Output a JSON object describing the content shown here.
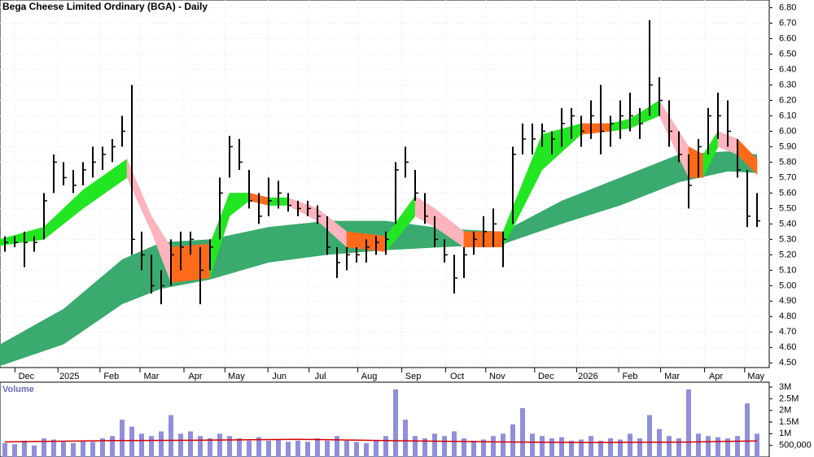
{
  "chart_data": [
    {
      "type": "candlestick",
      "title": "Bega Cheese Limited Ordinary (BGA) - Daily",
      "color": "#000000",
      "xlim": [
        -0.5,
        78.25
      ],
      "ylim": [
        4.47,
        6.85
      ],
      "grid": true,
      "xticks": [
        {
          "value": 2.2,
          "label": "Dec"
        },
        {
          "value": 6.6,
          "label": "2025"
        },
        {
          "value": 10.9,
          "label": "Feb"
        },
        {
          "value": 15,
          "label": "Mar"
        },
        {
          "value": 19.5,
          "label": "Apr"
        },
        {
          "value": 23.7,
          "label": "May"
        },
        {
          "value": 28.1,
          "label": "Jun"
        },
        {
          "value": 32.3,
          "label": "Jul"
        },
        {
          "value": 37.3,
          "label": "Aug"
        },
        {
          "value": 41.8,
          "label": "Sep"
        },
        {
          "value": 46.3,
          "label": "Oct"
        },
        {
          "value": 50.4,
          "label": "Nov"
        },
        {
          "value": 55.4,
          "label": "Dec"
        },
        {
          "value": 59.7,
          "label": "2026"
        },
        {
          "value": 64,
          "label": "Feb"
        },
        {
          "value": 68.3,
          "label": "Mar"
        },
        {
          "value": 72.8,
          "label": "Apr"
        },
        {
          "value": 76.9,
          "label": "May"
        }
      ],
      "yticks": [
        {
          "value": 4.5,
          "label": "4.50"
        },
        {
          "value": 4.6,
          "label": "4.60"
        },
        {
          "value": 4.7,
          "label": "4.70"
        },
        {
          "value": 4.8,
          "label": "4.80"
        },
        {
          "value": 4.9,
          "label": "4.90"
        },
        {
          "value": 5.0,
          "label": "5.00"
        },
        {
          "value": 5.1,
          "label": "5.10"
        },
        {
          "value": 5.2,
          "label": "5.20"
        },
        {
          "value": 5.3,
          "label": "5.30"
        },
        {
          "value": 5.4,
          "label": "5.40"
        },
        {
          "value": 5.5,
          "label": "5.50"
        },
        {
          "value": 5.6,
          "label": "5.60"
        },
        {
          "value": 5.7,
          "label": "5.70"
        },
        {
          "value": 5.8,
          "label": "5.80"
        },
        {
          "value": 5.9,
          "label": "5.90"
        },
        {
          "value": 6.0,
          "label": "6.00"
        },
        {
          "value": 6.1,
          "label": "6.10"
        },
        {
          "value": 6.2,
          "label": "6.20"
        },
        {
          "value": 6.3,
          "label": "6.30"
        },
        {
          "value": 6.4,
          "label": "6.40"
        },
        {
          "value": 6.5,
          "label": "6.50"
        },
        {
          "value": 6.6,
          "label": "6.60"
        },
        {
          "value": 6.7,
          "label": "6.70"
        },
        {
          "value": 6.8,
          "label": "6.80"
        }
      ],
      "x": [
        0,
        1,
        2,
        3,
        4,
        5,
        6,
        7,
        8,
        9,
        10,
        11,
        12,
        13,
        14,
        15,
        16,
        17,
        18,
        19,
        20,
        21,
        22,
        23,
        24,
        25,
        26,
        27,
        28,
        29,
        30,
        31,
        32,
        33,
        34,
        35,
        36,
        37,
        38,
        39,
        40,
        41,
        42,
        43,
        44,
        45,
        46,
        47,
        48,
        49,
        50,
        51,
        52,
        53,
        54,
        55,
        56,
        57,
        58,
        59,
        60,
        61,
        62,
        63,
        64,
        65,
        66,
        67,
        68,
        69,
        70,
        71,
        72,
        73,
        74,
        75,
        76,
        77
      ],
      "high": [
        5.32,
        5.32,
        5.35,
        5.32,
        5.6,
        5.85,
        5.8,
        5.75,
        5.8,
        5.9,
        5.9,
        5.95,
        6.1,
        6.3,
        5.35,
        5.2,
        5.1,
        5.3,
        5.35,
        5.35,
        5.25,
        5.3,
        5.7,
        5.97,
        5.95,
        5.75,
        5.6,
        5.7,
        5.68,
        5.6,
        5.55,
        5.55,
        5.52,
        5.45,
        5.25,
        5.25,
        5.25,
        5.3,
        5.32,
        5.35,
        5.8,
        5.9,
        5.75,
        5.6,
        5.45,
        5.3,
        5.2,
        5.25,
        5.35,
        5.45,
        5.5,
        5.35,
        5.9,
        6.05,
        6.05,
        6.05,
        6.0,
        6.15,
        6.15,
        6.1,
        6.2,
        6.3,
        6.1,
        6.2,
        6.25,
        6.15,
        6.72,
        6.35,
        6.2,
        6.0,
        5.85,
        5.95,
        6.15,
        6.25,
        6.2,
        5.95,
        5.75,
        5.6
      ],
      "low": [
        5.22,
        5.25,
        5.12,
        5.22,
        5.3,
        5.6,
        5.65,
        5.6,
        5.65,
        5.7,
        5.75,
        5.8,
        5.9,
        5.2,
        5.1,
        4.95,
        4.88,
        5.0,
        5.1,
        5.2,
        4.88,
        5.1,
        5.3,
        5.7,
        5.75,
        5.5,
        5.4,
        5.45,
        5.5,
        5.48,
        5.45,
        5.45,
        5.4,
        5.2,
        5.05,
        5.1,
        5.15,
        5.15,
        5.2,
        5.2,
        5.4,
        5.7,
        5.55,
        5.4,
        5.25,
        5.15,
        4.95,
        5.05,
        5.2,
        5.25,
        5.25,
        5.12,
        5.4,
        5.85,
        5.85,
        5.9,
        5.85,
        5.9,
        5.95,
        5.9,
        5.95,
        5.85,
        5.9,
        5.95,
        6.0,
        5.95,
        6.1,
        6.1,
        5.9,
        5.8,
        5.5,
        5.7,
        5.85,
        5.95,
        5.9,
        5.7,
        5.38,
        5.38
      ],
      "close": [
        5.28,
        5.28,
        5.28,
        5.28,
        5.55,
        5.8,
        5.7,
        5.65,
        5.75,
        5.8,
        5.85,
        5.9,
        6.0,
        5.3,
        5.2,
        5.0,
        5.0,
        5.2,
        5.25,
        5.3,
        5.1,
        5.25,
        5.6,
        5.9,
        5.8,
        5.55,
        5.45,
        5.55,
        5.6,
        5.52,
        5.5,
        5.5,
        5.45,
        5.25,
        5.15,
        5.2,
        5.2,
        5.25,
        5.28,
        5.3,
        5.75,
        5.8,
        5.6,
        5.45,
        5.3,
        5.2,
        5.05,
        5.2,
        5.3,
        5.35,
        5.4,
        5.3,
        5.85,
        5.95,
        5.95,
        6.0,
        5.95,
        6.05,
        6.1,
        6.0,
        6.1,
        6.0,
        6.05,
        6.1,
        6.1,
        6.05,
        6.3,
        6.2,
        6.0,
        5.85,
        5.65,
        5.9,
        6.1,
        6.1,
        6.0,
        5.75,
        5.45,
        5.42
      ],
      "long_band": {
        "color": "#3aaa6e",
        "x": [
          -0.5,
          6,
          12,
          16,
          21,
          27,
          33,
          39,
          45,
          51,
          57,
          63,
          69,
          74,
          77
        ],
        "upper": [
          4.62,
          4.85,
          5.17,
          5.28,
          5.3,
          5.38,
          5.42,
          5.42,
          5.37,
          5.35,
          5.55,
          5.7,
          5.85,
          5.87,
          5.85
        ],
        "lower": [
          4.48,
          4.62,
          4.88,
          4.98,
          5.04,
          5.15,
          5.2,
          5.23,
          5.25,
          5.27,
          5.4,
          5.52,
          5.67,
          5.74,
          5.73
        ]
      },
      "short_band": {
        "x": [
          -0.5,
          4,
          8,
          12.5,
          15,
          17,
          21,
          23,
          25,
          27,
          29,
          32,
          35,
          39,
          42,
          44,
          47,
          51,
          55,
          59,
          62,
          64,
          67,
          70,
          71.5,
          73,
          75,
          77
        ],
        "upper": [
          5.3,
          5.38,
          5.62,
          5.82,
          5.45,
          5.25,
          5.27,
          5.6,
          5.6,
          5.57,
          5.57,
          5.5,
          5.35,
          5.32,
          5.58,
          5.5,
          5.35,
          5.35,
          5.98,
          6.05,
          6.05,
          6.08,
          6.2,
          5.9,
          5.85,
          6.0,
          5.95,
          5.82
        ],
        "lower": [
          5.26,
          5.3,
          5.5,
          5.7,
          5.35,
          5.02,
          5.05,
          5.45,
          5.55,
          5.52,
          5.52,
          5.42,
          5.25,
          5.22,
          5.45,
          5.38,
          5.25,
          5.25,
          5.75,
          5.98,
          6.0,
          6.02,
          6.1,
          5.7,
          5.7,
          5.9,
          5.85,
          5.72
        ],
        "segment_colors": [
          "#22e622",
          "#22e622",
          "#22e622",
          "#ffb3bc",
          "#ffb3bc",
          "#ff6a1a",
          "#22e622",
          "#22e622",
          "#ff6a1a",
          "#22e622",
          "#ffb3bc",
          "#ffb3bc",
          "#ff6a1a",
          "#22e622",
          "#ffb3bc",
          "#ffb3bc",
          "#ff6a1a",
          "#22e622",
          "#22e622",
          "#ff6a1a",
          "#22e622",
          "#22e622",
          "#ffb3bc",
          "#ff6a1a",
          "#22e622",
          "#ffb3bc",
          "#ff6a1a"
        ]
      }
    },
    {
      "type": "bar",
      "title": "Volume",
      "color": "#8f8fdc",
      "xlim": [
        -0.5,
        78.25
      ],
      "ylim": [
        0,
        3280000
      ],
      "yticks": [
        {
          "value": 3000000,
          "label": "3M"
        },
        {
          "value": 2500000,
          "label": "2.5M"
        },
        {
          "value": 2000000,
          "label": "2M"
        },
        {
          "value": 1500000,
          "label": "1.5M"
        },
        {
          "value": 1000000,
          "label": "1M"
        },
        {
          "value": 500000,
          "label": "500,000"
        }
      ],
      "x": [
        0,
        1,
        2,
        3,
        4,
        5,
        6,
        7,
        8,
        9,
        10,
        11,
        12,
        13,
        14,
        15,
        16,
        17,
        18,
        19,
        20,
        21,
        22,
        23,
        24,
        25,
        26,
        27,
        28,
        29,
        30,
        31,
        32,
        33,
        34,
        35,
        36,
        37,
        38,
        39,
        40,
        41,
        42,
        43,
        44,
        45,
        46,
        47,
        48,
        49,
        50,
        51,
        52,
        53,
        54,
        55,
        56,
        57,
        58,
        59,
        60,
        61,
        62,
        63,
        64,
        65,
        66,
        67,
        68,
        69,
        70,
        71,
        72,
        73,
        74,
        75,
        76,
        77
      ],
      "values": [
        600000,
        550000,
        700000,
        500000,
        800000,
        750000,
        650000,
        600000,
        700000,
        650000,
        800000,
        900000,
        1600000,
        1300000,
        1000000,
        900000,
        1100000,
        1800000,
        1000000,
        1100000,
        900000,
        800000,
        1000000,
        900000,
        800000,
        700000,
        850000,
        700000,
        750000,
        650000,
        700000,
        650000,
        800000,
        700000,
        900000,
        700000,
        650000,
        600000,
        700000,
        900000,
        2900000,
        1600000,
        900000,
        800000,
        1000000,
        900000,
        1100000,
        800000,
        700000,
        750000,
        900000,
        1000000,
        1400000,
        2100000,
        1000000,
        900000,
        800000,
        850000,
        700000,
        750000,
        900000,
        700000,
        800000,
        750000,
        1000000,
        800000,
        1800000,
        1200000,
        900000,
        800000,
        2900000,
        1000000,
        900000,
        850000,
        800000,
        900000,
        2300000,
        1000000
      ],
      "ma": {
        "color": "#d40000",
        "x": [
          0,
          10,
          20,
          30,
          40,
          50,
          60,
          70,
          77
        ],
        "values": [
          650000,
          700000,
          720000,
          760000,
          700000,
          650000,
          620000,
          640000,
          690000
        ]
      }
    }
  ]
}
